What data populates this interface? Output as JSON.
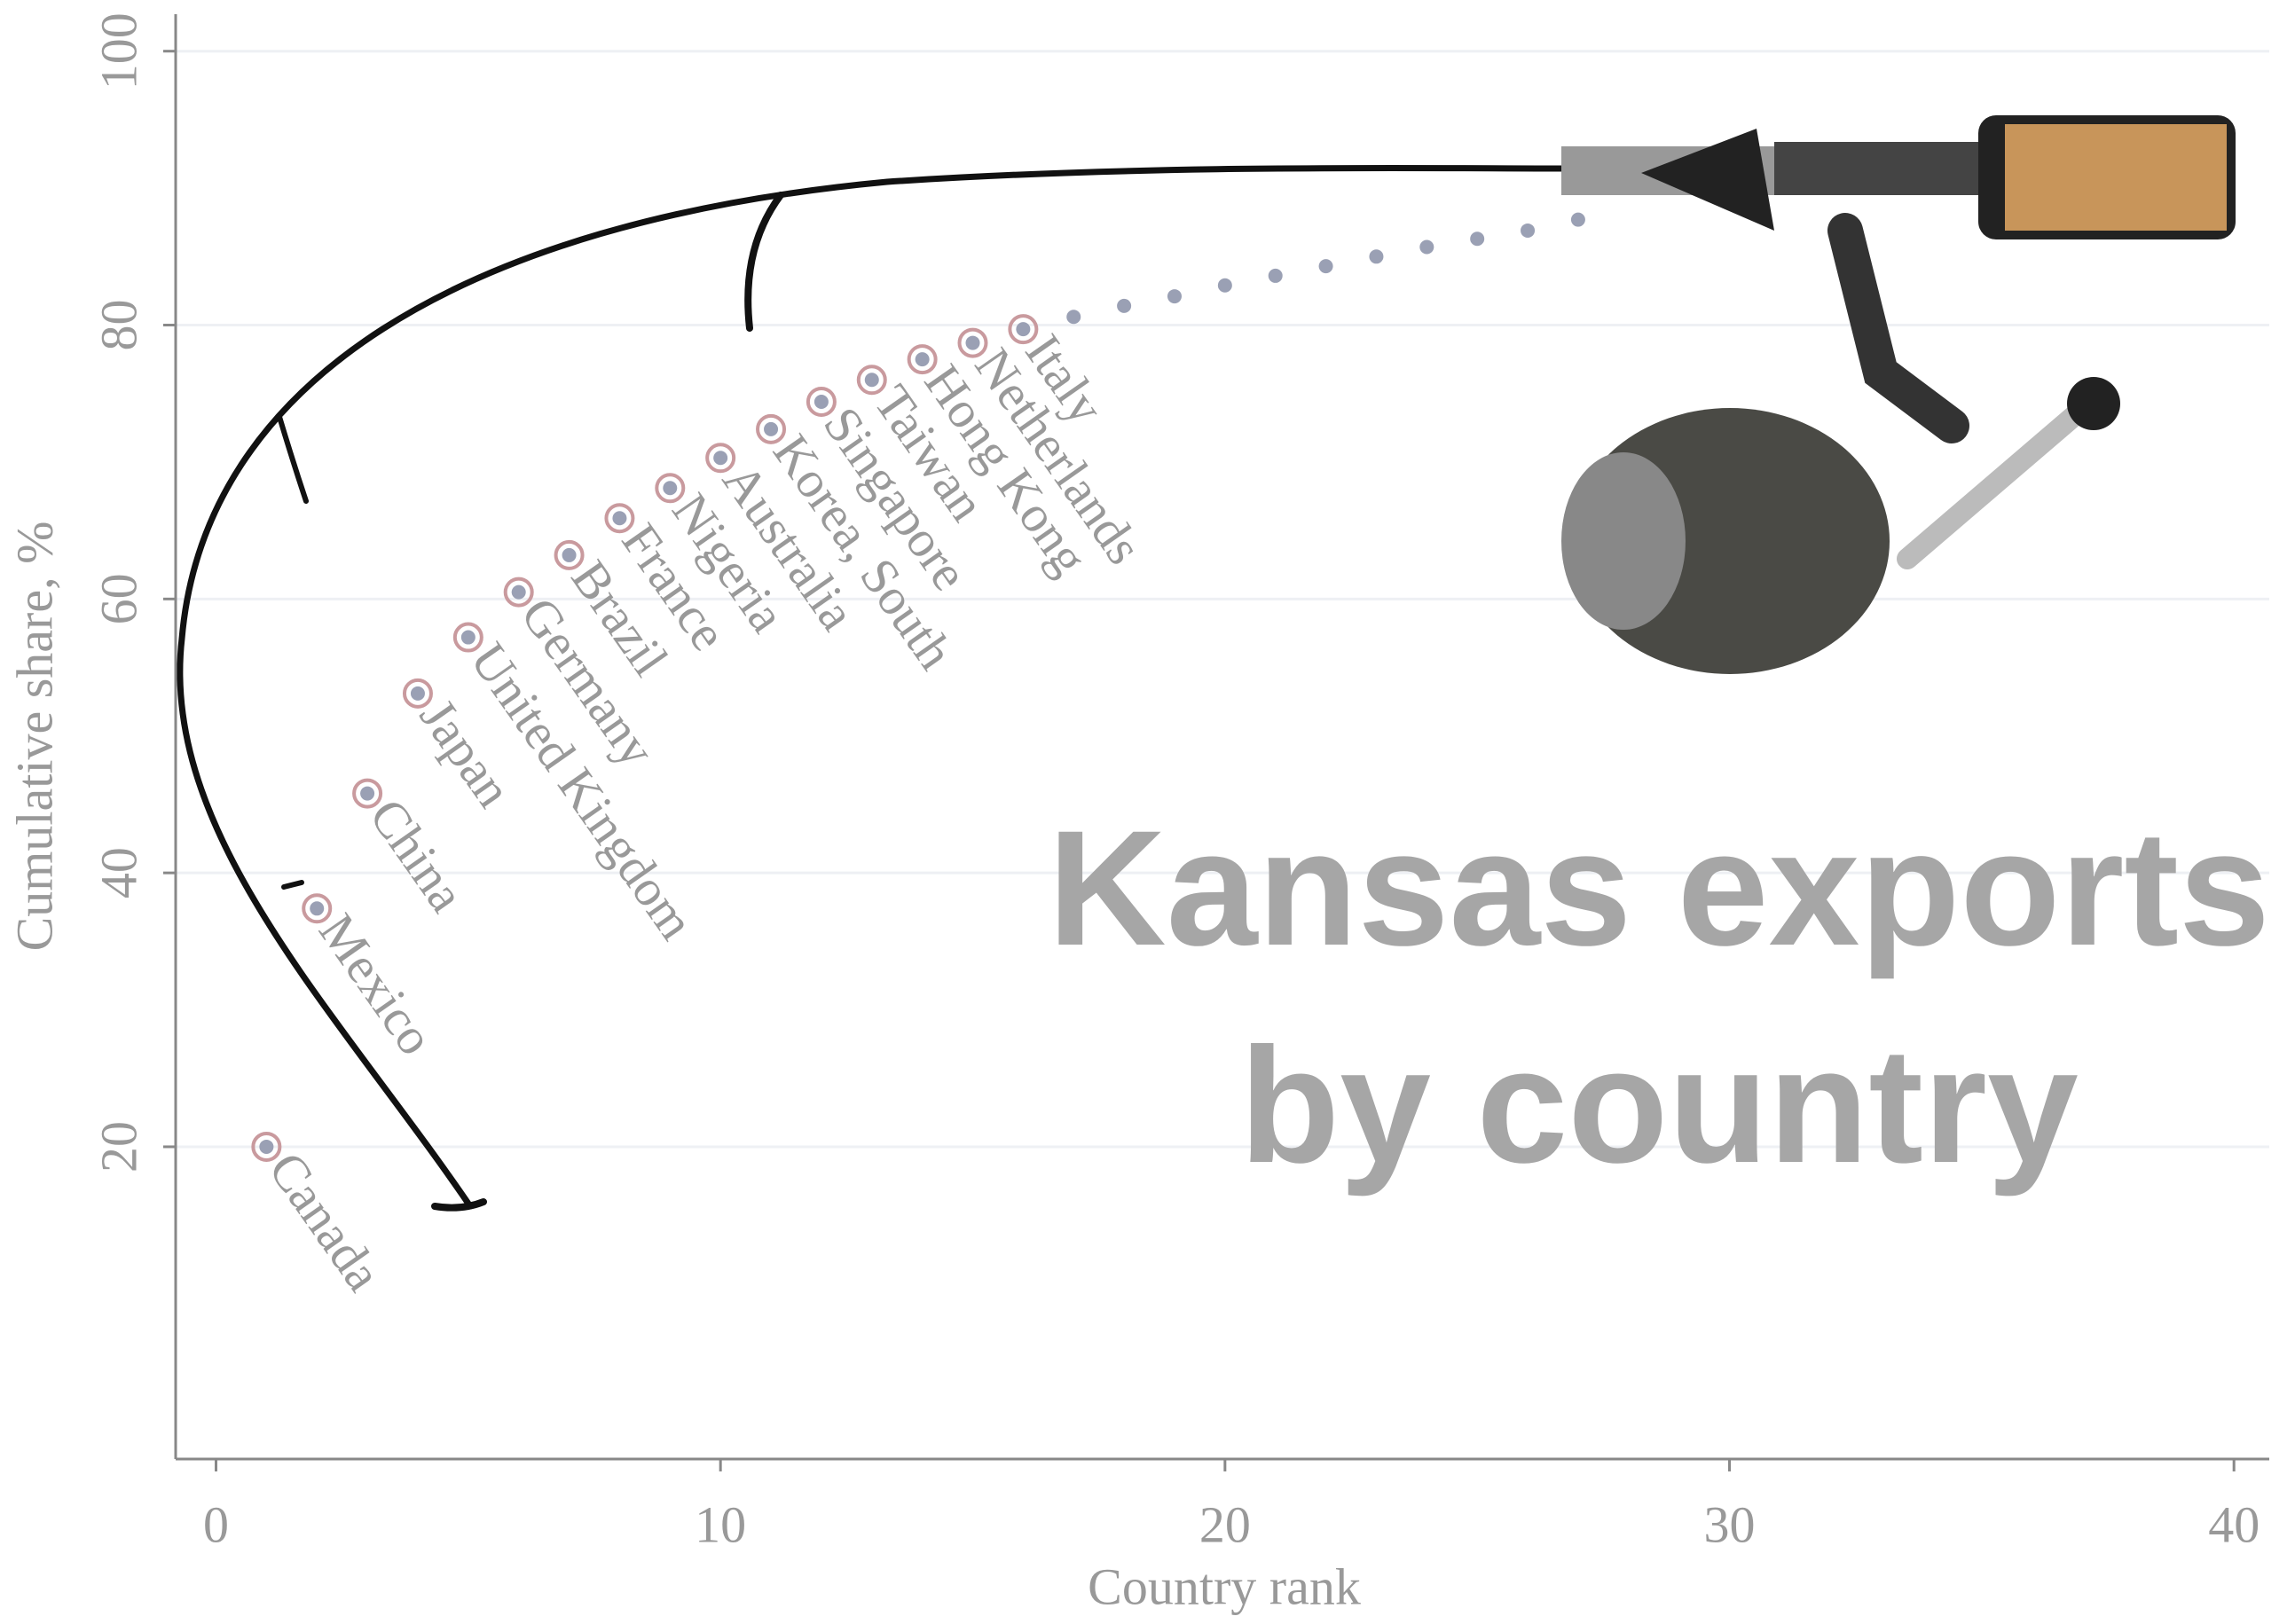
{
  "chart_data": {
    "type": "scatter",
    "title": "Kansas exports by country",
    "x_label": "Country rank",
    "y_label": "Cumulative share, %",
    "x": [
      1,
      2,
      3,
      4,
      5,
      6,
      7,
      8,
      9,
      10,
      11,
      12,
      13,
      14,
      15,
      16,
      17,
      18,
      19,
      20,
      21,
      22,
      23,
      24,
      25,
      26,
      27
    ],
    "values": [
      20.0,
      37.4,
      45.8,
      53.1,
      57.2,
      60.5,
      63.2,
      65.9,
      68.1,
      70.3,
      72.4,
      74.4,
      76.0,
      77.5,
      78.7,
      79.7,
      80.6,
      81.4,
      82.1,
      82.9,
      83.6,
      84.3,
      85.0,
      85.7,
      86.3,
      86.9,
      87.7
    ],
    "labels": [
      "Canada",
      "Mexico",
      "China",
      "Japan",
      "United Kingdom",
      "Germany",
      "Brazil",
      "France",
      "Nigeria",
      "Australia",
      "Korea, South",
      "Singapore",
      "Taiwan",
      "Hong Kong",
      "Netherlands",
      "Italy",
      null,
      null,
      null,
      null,
      null,
      null,
      null,
      null,
      null,
      null,
      null
    ],
    "color": "#9aa0b4",
    "label_color": "#c99a9e",
    "xlim": [
      -0.8,
      40.7
    ],
    "ylim": [
      -2.8,
      102.7
    ],
    "xticks": [
      0,
      10,
      20,
      30,
      40
    ],
    "yticks": [
      20,
      40,
      60,
      80,
      100
    ],
    "grid": true
  }
}
